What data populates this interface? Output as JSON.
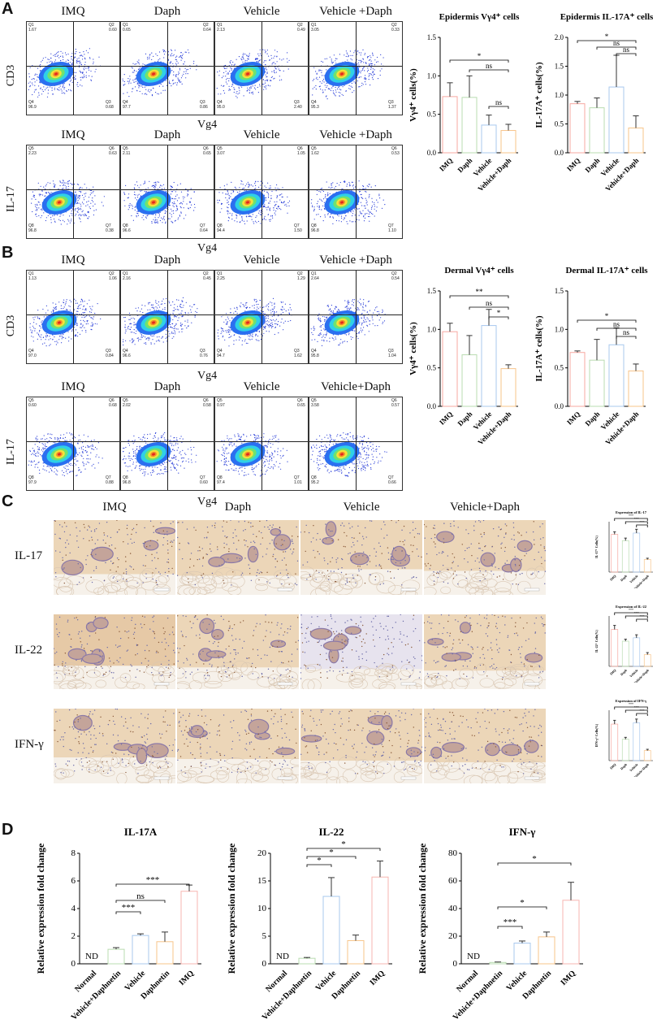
{
  "panels": {
    "A": "A",
    "B": "B",
    "C": "C",
    "D": "D"
  },
  "flow": {
    "A_top": {
      "ylabel": "CD3",
      "xlabel": "Vg4",
      "groups": [
        "IMQ",
        "Daph",
        "Vehicle",
        "Vehicle +Daph"
      ],
      "quads": [
        [
          "Q1",
          "Q2",
          "Q3",
          "Q4",
          "1.67",
          "0.60",
          "0.68",
          "96.9"
        ],
        [
          "Q1",
          "Q2",
          "Q3",
          "Q4",
          "0.65",
          "0.64",
          "0.86",
          "97.7"
        ],
        [
          "Q1",
          "Q2",
          "Q3",
          "Q4",
          "2.13",
          "0.49",
          "2.40",
          "95.0"
        ],
        [
          "Q1",
          "Q2",
          "Q3",
          "Q4",
          "3.05",
          "0.33",
          "1.37",
          "95.3"
        ]
      ]
    },
    "A_bot": {
      "ylabel": "IL-17",
      "xlabel": "Vg4",
      "groups": [
        "IMQ",
        "Daph",
        "Vehicle",
        "Vehicle +Daph"
      ],
      "quads": [
        [
          "Q5",
          "Q6",
          "Q7",
          "Q8",
          "2.23",
          "0.63",
          "0.38",
          "96.8"
        ],
        [
          "Q5",
          "Q6",
          "Q7",
          "Q8",
          "2.11",
          "0.65",
          "0.64",
          "96.6"
        ],
        [
          "Q5",
          "Q6",
          "Q7",
          "Q8",
          "3.07",
          "1.05",
          "1.50",
          "94.4"
        ],
        [
          "Q5",
          "Q6",
          "Q7",
          "Q8",
          "1.62",
          "0.53",
          "1.10",
          "96.8"
        ]
      ]
    },
    "B_top": {
      "ylabel": "CD3",
      "xlabel": "Vg4",
      "groups": [
        "IMQ",
        "Daph",
        "Vehicle",
        "Vehicle +Daph"
      ],
      "quads": [
        [
          "Q1",
          "Q2",
          "Q3",
          "Q4",
          "1.13",
          "1.06",
          "0.84",
          "97.0"
        ],
        [
          "Q1",
          "Q2",
          "Q3",
          "Q4",
          "2.16",
          "0.45",
          "0.76",
          "96.6"
        ],
        [
          "Q1",
          "Q2",
          "Q3",
          "Q4",
          "2.25",
          "1.29",
          "1.62",
          "94.7"
        ],
        [
          "Q1",
          "Q2",
          "Q3",
          "Q4",
          "2.64",
          "0.54",
          "1.04",
          "95.8"
        ]
      ]
    },
    "B_bot": {
      "ylabel": "IL-17",
      "xlabel": "Vg4",
      "groups": [
        "IMQ",
        "Daph",
        "Vehicle",
        "Vehicle+Daph"
      ],
      "quads": [
        [
          "Q5",
          "Q6",
          "Q7",
          "Q8",
          "0.60",
          "0.68",
          "0.88",
          "97.9"
        ],
        [
          "Q5",
          "Q6",
          "Q7",
          "Q8",
          "2.02",
          "0.58",
          "0.60",
          "96.8"
        ],
        [
          "Q5",
          "Q6",
          "Q7",
          "Q8",
          "0.97",
          "0.65",
          "1.01",
          "97.4"
        ],
        [
          "Q5",
          "Q6",
          "Q7",
          "Q8",
          "3.58",
          "0.57",
          "0.66",
          "95.2"
        ]
      ]
    }
  },
  "histology": {
    "columns": [
      "IMQ",
      "Daph",
      "Vehicle",
      "Vehicle+Daph"
    ],
    "rows": [
      "IL-17",
      "IL-22",
      "IFN-γ"
    ],
    "mini": [
      {
        "title": "Expression of IL-17",
        "ylabel": "IL-17⁺ Cells(%)"
      },
      {
        "title": "Expression of IL-22",
        "ylabel": "IL-22⁺ Cells(%)"
      },
      {
        "title": "Expression of IFN-γ",
        "ylabel": "IFN-γ⁺ Cells(%)"
      }
    ]
  },
  "chart_data": [
    {
      "id": "epi_vg4",
      "type": "bar",
      "title": "Epidermis Vγ4⁺ cells",
      "ylabel": "Vγ4⁺ cells(%)",
      "categories": [
        "IMQ",
        "Daph",
        "Vehicle",
        "Vehicle+Daph"
      ],
      "values": [
        0.73,
        0.72,
        0.36,
        0.29
      ],
      "errors": [
        0.18,
        0.28,
        0.13,
        0.08
      ],
      "ylim": [
        0,
        1.5
      ],
      "ticks": [
        "0.0",
        "0.5",
        "1.0",
        "1.5"
      ],
      "sig": [
        {
          "a": 0,
          "b": 3,
          "t": "*"
        },
        {
          "a": 1,
          "b": 3,
          "t": "ns"
        },
        {
          "a": 2,
          "b": 3,
          "t": "ns"
        }
      ]
    },
    {
      "id": "epi_il17",
      "type": "bar",
      "title": "Epidermis IL-17A⁺ cells",
      "ylabel": "IL-17A⁺ cells(%)",
      "categories": [
        "IMQ",
        "Daph",
        "Vehicle",
        "Vehicle+Daph"
      ],
      "values": [
        0.85,
        0.78,
        1.14,
        0.43
      ],
      "errors": [
        0.04,
        0.17,
        0.55,
        0.21
      ],
      "ylim": [
        0,
        2.0
      ],
      "ticks": [
        "0.0",
        "0.5",
        "1.0",
        "1.5",
        "2.0"
      ],
      "sig": [
        {
          "a": 0,
          "b": 3,
          "t": "*"
        },
        {
          "a": 1,
          "b": 3,
          "t": "ns"
        },
        {
          "a": 2,
          "b": 3,
          "t": "ns"
        }
      ]
    },
    {
      "id": "der_vg4",
      "type": "bar",
      "title": "Dermal Vγ4⁺ cells",
      "ylabel": "Vγ4⁺ cells(%)",
      "categories": [
        "IMQ",
        "Daph",
        "Vehicle",
        "Vehicle+Daph"
      ],
      "values": [
        0.97,
        0.67,
        1.05,
        0.49
      ],
      "errors": [
        0.11,
        0.25,
        0.21,
        0.05
      ],
      "ylim": [
        0,
        1.5
      ],
      "ticks": [
        "0.0",
        "0.5",
        "1.0",
        "1.5"
      ],
      "sig": [
        {
          "a": 0,
          "b": 3,
          "t": "**"
        },
        {
          "a": 1,
          "b": 3,
          "t": "ns"
        },
        {
          "a": 2,
          "b": 3,
          "t": "*"
        }
      ]
    },
    {
      "id": "der_il17",
      "type": "bar",
      "title": "Dermal IL-17A⁺ cells",
      "ylabel": "IL-17A⁺ cells(%)",
      "categories": [
        "IMQ",
        "Daph",
        "Vehicle",
        "Vehicle+Daph"
      ],
      "values": [
        0.7,
        0.6,
        0.8,
        0.46
      ],
      "errors": [
        0.02,
        0.27,
        0.22,
        0.09
      ],
      "ylim": [
        0,
        1.5
      ],
      "ticks": [
        "0.0",
        "0.5",
        "1.0",
        "1.5"
      ],
      "sig": [
        {
          "a": 0,
          "b": 3,
          "t": "*"
        },
        {
          "a": 1,
          "b": 3,
          "t": "ns"
        },
        {
          "a": 2,
          "b": 3,
          "t": "ns"
        }
      ]
    },
    {
      "id": "ihc_il17",
      "type": "bar",
      "title": "Expression of IL-17",
      "categories": [
        "IMQ",
        "Daph",
        "Vehicle",
        "Vehicle+Daph"
      ],
      "values": [
        30,
        25,
        31,
        10
      ],
      "errors": [
        2,
        2,
        3,
        1
      ],
      "ylim": [
        0,
        40
      ],
      "sig": [
        {
          "a": 0,
          "b": 3,
          "t": "***"
        },
        {
          "a": 1,
          "b": 3,
          "t": "***"
        },
        {
          "a": 2,
          "b": 3,
          "t": "***"
        }
      ]
    },
    {
      "id": "ihc_il22",
      "type": "bar",
      "title": "Expression of IL-22",
      "categories": [
        "IMQ",
        "Daph",
        "Vehicle",
        "Vehicle+Daph"
      ],
      "values": [
        11,
        7.5,
        8.5,
        3.5
      ],
      "errors": [
        1.2,
        0.6,
        0.9,
        0.6
      ],
      "ylim": [
        0,
        15
      ],
      "sig": [
        {
          "a": 0,
          "b": 3,
          "t": "***"
        },
        {
          "a": 1,
          "b": 3,
          "t": "***"
        },
        {
          "a": 2,
          "b": 3,
          "t": "***"
        }
      ]
    },
    {
      "id": "ihc_ifng",
      "type": "bar",
      "title": "Expression of IFN-γ",
      "categories": [
        "IMQ",
        "Daph",
        "Vehicle",
        "Vehicle+Daph"
      ],
      "values": [
        29,
        17,
        30,
        8
      ],
      "errors": [
        3,
        1.5,
        3,
        1
      ],
      "ylim": [
        0,
        40
      ],
      "sig": [
        {
          "a": 0,
          "b": 3,
          "t": "***"
        },
        {
          "a": 1,
          "b": 3,
          "t": "***"
        },
        {
          "a": 2,
          "b": 3,
          "t": "***"
        }
      ]
    },
    {
      "id": "qpcr_il17a",
      "type": "bar",
      "title": "IL-17A",
      "ylabel": "Relative expression fold change",
      "categories": [
        "Normal",
        "Vehicle+Daphnetin",
        "Vehicle",
        "Daphnetin",
        "IMQ"
      ],
      "values": [
        0,
        1.05,
        2.05,
        1.6,
        5.25
      ],
      "errors": [
        0,
        0.12,
        0.12,
        0.7,
        0.45
      ],
      "nd": "ND",
      "ylim": [
        0,
        8
      ],
      "ticks": [
        "0",
        "2",
        "4",
        "6",
        "8"
      ],
      "sig": [
        {
          "a": 1,
          "b": 4,
          "t": "***"
        },
        {
          "a": 1,
          "b": 3,
          "t": "ns"
        },
        {
          "a": 1,
          "b": 2,
          "t": "***"
        }
      ]
    },
    {
      "id": "qpcr_il22",
      "type": "bar",
      "title": "IL-22",
      "ylabel": "Relative expression fold change",
      "categories": [
        "Normal",
        "Vehicle+Daphnetin",
        "Vehicle",
        "Daphnetin",
        "IMQ"
      ],
      "values": [
        0,
        1.0,
        12.2,
        4.2,
        15.7
      ],
      "errors": [
        0,
        0.15,
        3.4,
        1.0,
        2.9
      ],
      "nd": "ND",
      "ylim": [
        0,
        20
      ],
      "ticks": [
        "0",
        "5",
        "10",
        "15",
        "20"
      ],
      "sig": [
        {
          "a": 1,
          "b": 4,
          "t": "*"
        },
        {
          "a": 1,
          "b": 3,
          "t": "*"
        },
        {
          "a": 1,
          "b": 2,
          "t": "*"
        }
      ]
    },
    {
      "id": "qpcr_ifng",
      "type": "bar",
      "title": "IFN-γ",
      "ylabel": "Relative expression fold change",
      "categories": [
        "Normal",
        "Vehicle+Daphnetin",
        "Vehicle",
        "Daphnetin",
        "IMQ"
      ],
      "values": [
        0,
        1.0,
        15.0,
        19.5,
        46.0
      ],
      "errors": [
        0,
        0.3,
        1.5,
        3.5,
        13.0
      ],
      "nd": "ND",
      "ylim": [
        0,
        80
      ],
      "ticks": [
        "0",
        "20",
        "40",
        "60",
        "80"
      ],
      "sig": [
        {
          "a": 1,
          "b": 4,
          "t": "*"
        },
        {
          "a": 1,
          "b": 3,
          "t": "*"
        },
        {
          "a": 1,
          "b": 2,
          "t": "***"
        }
      ]
    }
  ],
  "colors": [
    "#f7a8a0",
    "#b9dcb0",
    "#a8c8ee",
    "#f7c48a",
    "#f7b5b0"
  ]
}
